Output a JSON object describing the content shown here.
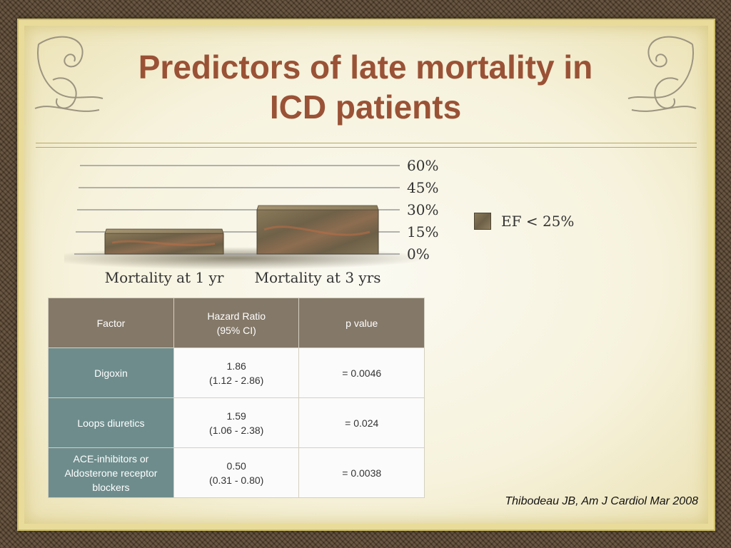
{
  "slide": {
    "title_line1": "Predictors of late mortality in",
    "title_line2": "ICD patients",
    "citation": "Thibodeau JB, Am J Cardiol Mar 2008"
  },
  "chart_data": {
    "type": "bar",
    "categories": [
      "Mortality at 1 yr",
      "Mortality at 3 yrs"
    ],
    "series": [
      {
        "name": "EF < 25%",
        "values": [
          14,
          30
        ]
      }
    ],
    "yticks": [
      "0%",
      "15%",
      "30%",
      "45%",
      "60%"
    ],
    "ylim": [
      0,
      60
    ],
    "grid": true,
    "legend_position": "right",
    "title": "",
    "xlabel": "",
    "ylabel": ""
  },
  "table": {
    "headers": [
      {
        "line1": "Factor",
        "line2": ""
      },
      {
        "line1": "Hazard Ratio",
        "line2": "(95% CI)"
      },
      {
        "line1": "p value",
        "line2": ""
      }
    ],
    "rows": [
      {
        "factor1": "Digoxin",
        "factor2": "",
        "factor3": "",
        "hr": "1.86",
        "ci": "(1.12 - 2.86)",
        "p": "= 0.0046"
      },
      {
        "factor1": "Loops diuretics",
        "factor2": "",
        "factor3": "",
        "hr": "1.59",
        "ci": "(1.06 - 2.38)",
        "p": "= 0.024"
      },
      {
        "factor1": "ACE-inhibitors or",
        "factor2": "Aldosterone receptor",
        "factor3": "blockers",
        "hr": "0.50",
        "ci": "(0.31 - 0.80)",
        "p": "= 0.0038"
      }
    ]
  },
  "colors": {
    "title": "#9a5236",
    "header_bg": "#847868",
    "factor_bg": "#6e8c8c",
    "bar": "#7a6a4e"
  },
  "icons": [
    "flourish-ornament-icon"
  ]
}
